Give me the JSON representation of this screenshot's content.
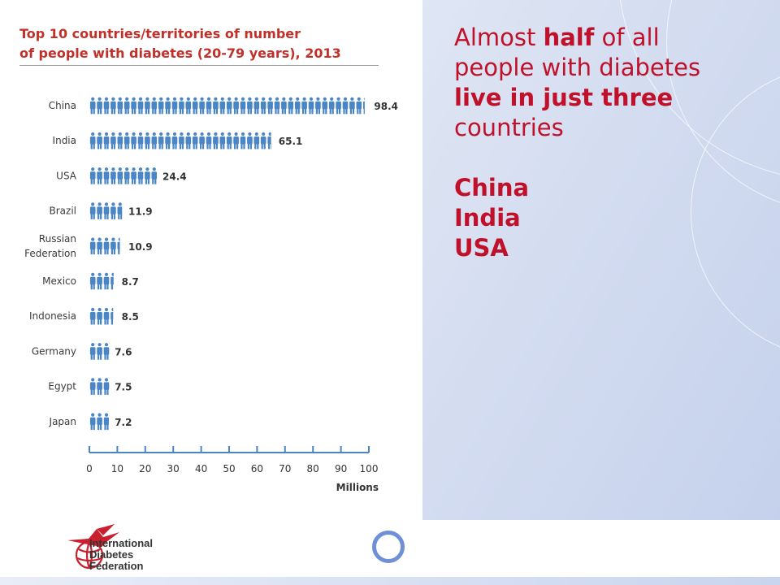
{
  "slide": {
    "message": {
      "line_1_a": "Almost ",
      "line_1_b": "half",
      "line_1_c": " of all",
      "line_2": "people with diabetes",
      "line_3": "live in just three",
      "line_4": "countries",
      "countries": [
        "China",
        "India",
        "USA"
      ]
    },
    "logo": {
      "line_1": "International",
      "line_2": "Diabetes",
      "line_3": "Federation"
    }
  },
  "colors": {
    "title_red": "#c0312a",
    "message_red": "#c0102a",
    "icon_blue": "#4a86c5",
    "axis_blue": "#4a86c5",
    "panel_blue": "#d3dcf0"
  },
  "chart_data": {
    "type": "bar",
    "title_line_1": "Top 10 countries/territories of number",
    "title_line_2": "of people with diabetes (20-79 years), 2013",
    "categories": [
      "China",
      "India",
      "USA",
      "Brazil",
      "Russian Federation",
      "Mexico",
      "Indonesia",
      "Germany",
      "Egypt",
      "Japan"
    ],
    "category_label_lines": [
      [
        "China"
      ],
      [
        "India"
      ],
      [
        "USA"
      ],
      [
        "Brazil"
      ],
      [
        "Russian",
        "Federation"
      ],
      [
        "Mexico"
      ],
      [
        "Indonesia"
      ],
      [
        "Germany"
      ],
      [
        "Egypt"
      ],
      [
        "Japan"
      ]
    ],
    "values": [
      98.4,
      65.1,
      24.4,
      11.9,
      10.9,
      8.7,
      8.5,
      7.6,
      7.5,
      7.2
    ],
    "value_labels": [
      "98.4",
      "65.1",
      "24.4",
      "11.9",
      "10.9",
      "8.7",
      "8.5",
      "7.6",
      "7.5",
      "7.2"
    ],
    "xlabel": "Millions",
    "xlim": [
      0,
      100
    ],
    "xticks": [
      0,
      10,
      20,
      30,
      40,
      50,
      60,
      70,
      80,
      90,
      100
    ],
    "mark": "person-pictogram",
    "grid": false,
    "legend": "none"
  }
}
